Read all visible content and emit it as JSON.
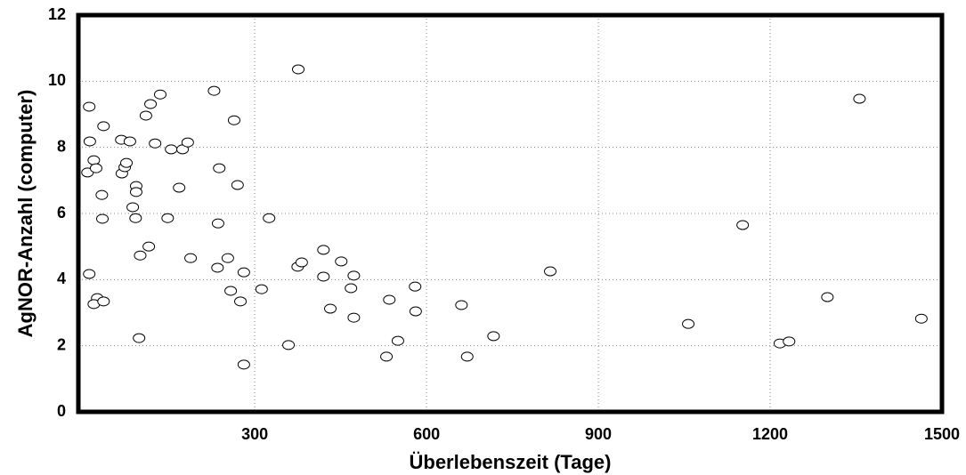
{
  "chart_data": {
    "type": "scatter",
    "x_label": "Überlebenszeit (Tage)",
    "y_label": "AgNOR-Anzahl (computer)",
    "xlim": [
      -8,
      1500
    ],
    "ylim": [
      0,
      12
    ],
    "xticks": [
      300,
      600,
      900,
      1200,
      1500
    ],
    "yticks": [
      0,
      2,
      4,
      6,
      8,
      10,
      12
    ],
    "grid": true,
    "color": "#000000",
    "x": [
      11,
      12,
      8,
      19,
      23,
      11,
      25,
      19,
      36,
      34,
      33,
      36,
      67,
      68,
      73,
      76,
      82,
      87,
      92,
      93,
      93,
      100,
      98,
      110,
      115,
      118,
      126,
      135,
      148,
      154,
      168,
      174,
      183,
      188,
      229,
      238,
      236,
      235,
      253,
      258,
      264,
      270,
      281,
      275,
      281,
      312,
      325,
      359,
      376,
      375,
      382,
      420,
      420,
      432,
      451,
      468,
      473,
      473,
      535,
      530,
      550,
      580,
      581,
      661,
      671,
      717,
      816,
      1057,
      1152,
      1217,
      1233,
      1300,
      1356,
      1464
    ],
    "values": [
      9.23,
      8.18,
      7.24,
      7.61,
      7.37,
      4.17,
      3.44,
      3.26,
      3.34,
      5.84,
      6.56,
      8.64,
      8.23,
      7.21,
      7.4,
      7.53,
      8.18,
      6.19,
      5.86,
      6.83,
      6.65,
      4.73,
      2.23,
      8.96,
      5.0,
      9.31,
      8.12,
      9.6,
      5.86,
      7.94,
      6.78,
      7.94,
      8.15,
      4.65,
      9.71,
      7.37,
      5.7,
      4.36,
      4.65,
      3.66,
      8.82,
      6.86,
      4.22,
      3.34,
      1.43,
      3.71,
      5.86,
      2.02,
      10.36,
      4.39,
      4.52,
      4.9,
      4.09,
      3.12,
      4.55,
      3.74,
      4.12,
      2.85,
      3.39,
      1.67,
      2.15,
      3.79,
      3.04,
      3.23,
      1.67,
      2.29,
      4.25,
      2.66,
      5.65,
      2.07,
      2.13,
      3.47,
      9.47,
      2.82
    ]
  }
}
